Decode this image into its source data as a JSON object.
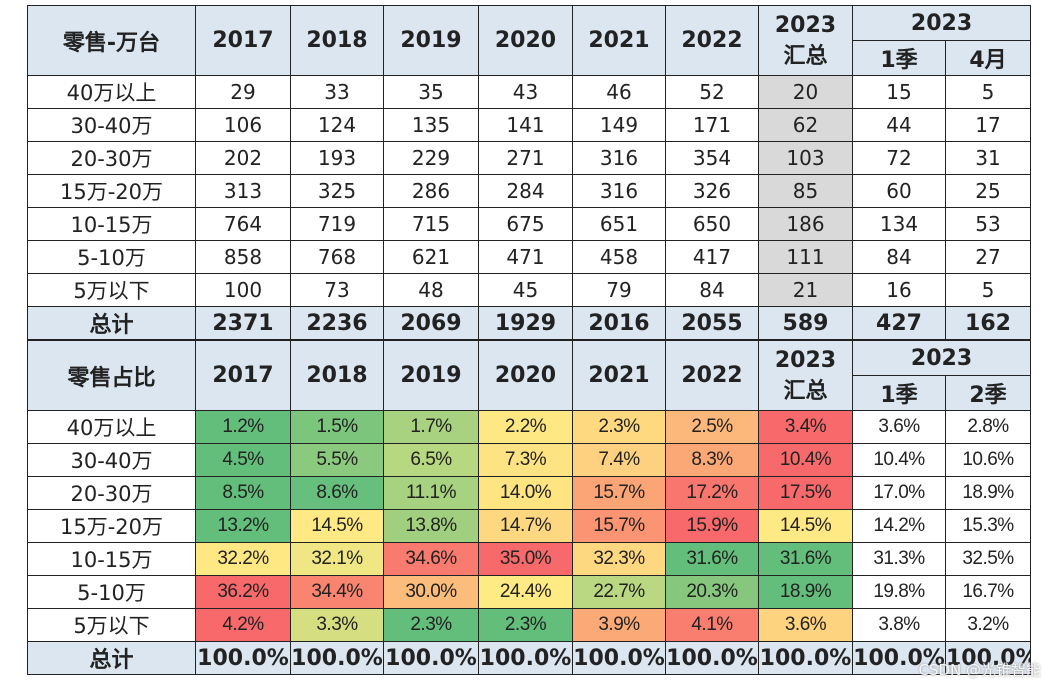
{
  "sections": [
    {
      "header": {
        "label": "零售-万台",
        "years": [
          "2017",
          "2018",
          "2019",
          "2020",
          "2021",
          "2022"
        ],
        "summary": [
          "2023",
          "汇总"
        ],
        "group": "2023",
        "sub": [
          "1季",
          "4月"
        ]
      },
      "summary_gray": true,
      "rows": [
        {
          "label": "40万以上",
          "cells": [
            "29",
            "33",
            "35",
            "43",
            "46",
            "52",
            "20",
            "15",
            "5"
          ]
        },
        {
          "label": "30-40万",
          "cells": [
            "106",
            "124",
            "135",
            "141",
            "149",
            "171",
            "62",
            "44",
            "17"
          ]
        },
        {
          "label": "20-30万",
          "cells": [
            "202",
            "193",
            "229",
            "271",
            "316",
            "354",
            "103",
            "72",
            "31"
          ]
        },
        {
          "label": "15万-20万",
          "cells": [
            "313",
            "325",
            "286",
            "284",
            "316",
            "326",
            "85",
            "60",
            "25"
          ]
        },
        {
          "label": "10-15万",
          "cells": [
            "764",
            "719",
            "715",
            "675",
            "651",
            "650",
            "186",
            "134",
            "53"
          ]
        },
        {
          "label": "5-10万",
          "cells": [
            "858",
            "768",
            "621",
            "471",
            "458",
            "417",
            "111",
            "84",
            "27"
          ]
        },
        {
          "label": "5万以下",
          "cells": [
            "100",
            "73",
            "48",
            "45",
            "79",
            "84",
            "21",
            "16",
            "5"
          ]
        }
      ],
      "total": {
        "label": "总计",
        "cells": [
          "2371",
          "2236",
          "2069",
          "1929",
          "2016",
          "2055",
          "589",
          "427",
          "162"
        ]
      }
    },
    {
      "header": {
        "label": "零售占比",
        "years": [
          "2017",
          "2018",
          "2019",
          "2020",
          "2021",
          "2022"
        ],
        "summary": [
          "2023",
          "汇总"
        ],
        "group": "2023",
        "sub": [
          "1季",
          "2季"
        ]
      },
      "summary_gray": false,
      "rows": [
        {
          "label": "40万以上",
          "cells": [
            "1.2%",
            "1.5%",
            "1.7%",
            "2.2%",
            "2.3%",
            "2.5%",
            "3.4%",
            "3.6%",
            "2.8%"
          ],
          "colors": [
            "#63be7b",
            "#7cc57d",
            "#a8d27f",
            "#fde883",
            "#fed980",
            "#fcb77a",
            "#f8696b"
          ]
        },
        {
          "label": "30-40万",
          "cells": [
            "4.5%",
            "5.5%",
            "6.5%",
            "7.3%",
            "7.4%",
            "8.3%",
            "10.4%",
            "10.4%",
            "10.6%"
          ],
          "colors": [
            "#63be7b",
            "#8ac97e",
            "#b7d780",
            "#fee382",
            "#fdd17f",
            "#fba776",
            "#f8696b"
          ]
        },
        {
          "label": "20-30万",
          "cells": [
            "8.5%",
            "8.6%",
            "11.1%",
            "14.0%",
            "15.7%",
            "17.2%",
            "17.5%",
            "17.0%",
            "18.9%"
          ],
          "colors": [
            "#63be7b",
            "#66bf7c",
            "#a7d27f",
            "#fee582",
            "#fba476",
            "#f8766d",
            "#f8696b"
          ]
        },
        {
          "label": "15万-20万",
          "cells": [
            "13.2%",
            "14.5%",
            "13.8%",
            "14.7%",
            "15.7%",
            "15.9%",
            "14.5%",
            "14.2%",
            "15.3%"
          ],
          "colors": [
            "#63be7b",
            "#ffe984",
            "#a0d07f",
            "#fed880",
            "#fa9473",
            "#f8696b",
            "#ffe984"
          ]
        },
        {
          "label": "10-15万",
          "cells": [
            "32.2%",
            "32.1%",
            "34.6%",
            "35.0%",
            "32.3%",
            "31.6%",
            "31.6%",
            "31.3%",
            "32.5%"
          ],
          "colors": [
            "#fee883",
            "#f0e784",
            "#f97a6e",
            "#f8696b",
            "#fed880",
            "#63be7b",
            "#63be7b"
          ]
        },
        {
          "label": "5-10万",
          "cells": [
            "36.2%",
            "34.4%",
            "30.0%",
            "24.4%",
            "22.7%",
            "20.3%",
            "18.9%",
            "19.8%",
            "16.7%"
          ],
          "colors": [
            "#f8696b",
            "#f98570",
            "#fcbc7b",
            "#ffeb84",
            "#bad781",
            "#86c77d",
            "#63be7b"
          ]
        },
        {
          "label": "5万以下",
          "cells": [
            "4.2%",
            "3.3%",
            "2.3%",
            "2.3%",
            "3.9%",
            "4.1%",
            "3.6%",
            "3.8%",
            "3.2%"
          ],
          "colors": [
            "#f8696b",
            "#d5df82",
            "#63be7b",
            "#63be7b",
            "#fbaa77",
            "#f97e6f",
            "#fed380"
          ]
        }
      ],
      "total": {
        "label": "总计",
        "cells": [
          "100.0%",
          "100.0%",
          "100.0%",
          "100.0%",
          "100.0%",
          "100.0%",
          "100.0%",
          "100.0%",
          "100.0%"
        ]
      }
    }
  ],
  "watermark": "CSDN @光锥智能"
}
